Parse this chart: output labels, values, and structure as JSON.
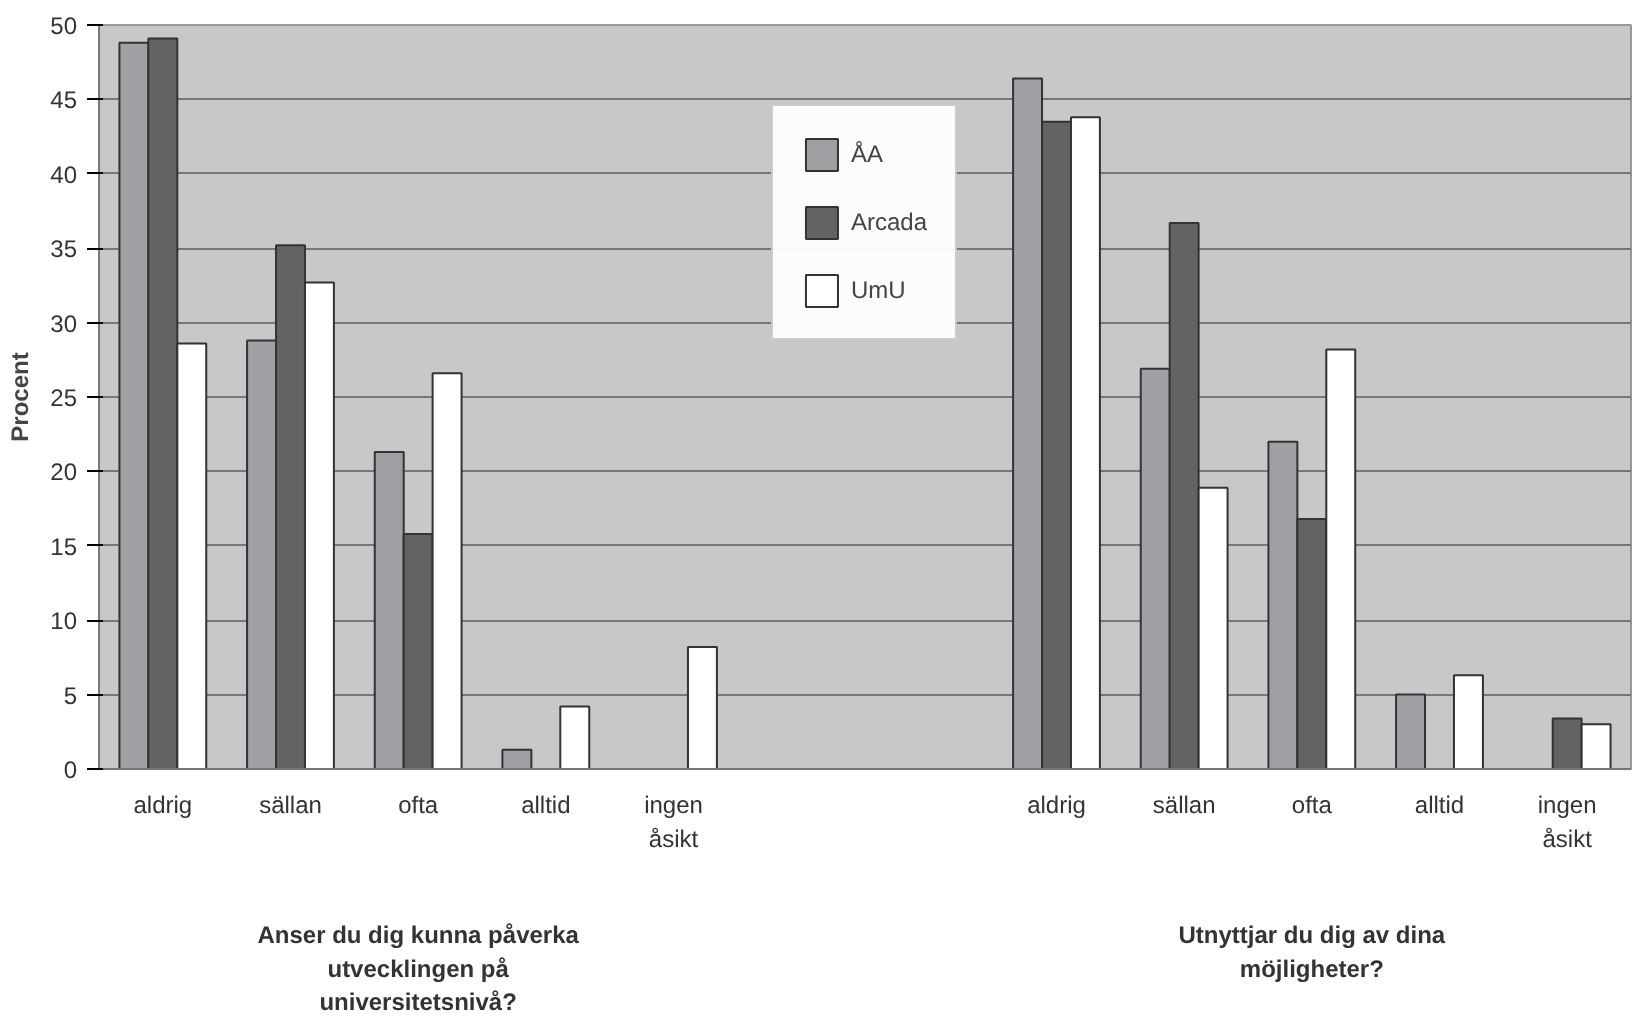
{
  "chart_data": {
    "type": "bar",
    "ylabel": "Procent",
    "categories": [
      "aldrig",
      "sällan",
      "ofta",
      "alltid",
      "ingen åsikt",
      null,
      null,
      "aldrig",
      "sällan",
      "ofta",
      "alltid",
      "ingen åsikt"
    ],
    "series": [
      {
        "name": "ÅA",
        "color": "#a0a0a4",
        "values": [
          48.8,
          28.8,
          21.3,
          1.3,
          null,
          null,
          null,
          46.4,
          26.9,
          22.0,
          5.0,
          null
        ]
      },
      {
        "name": "Arcada",
        "color": "#636366",
        "values": [
          49.1,
          35.2,
          15.8,
          null,
          null,
          null,
          null,
          43.5,
          36.7,
          16.8,
          null,
          3.4
        ]
      },
      {
        "name": "UmU",
        "color": "#ffffff",
        "values": [
          28.6,
          32.7,
          26.6,
          4.2,
          8.2,
          null,
          null,
          43.8,
          18.9,
          28.2,
          6.3,
          3.0
        ]
      }
    ],
    "ylim": [
      0,
      50
    ],
    "yticks": [
      0,
      5,
      10,
      15,
      20,
      25,
      30,
      35,
      40,
      45,
      50
    ],
    "grid": "y",
    "legend": "top",
    "annotations": [
      "Anser du dig kunna påverka utvecklingen på universitetsnivå?",
      "Utnyttjar du dig av dina möjligheter?"
    ]
  }
}
